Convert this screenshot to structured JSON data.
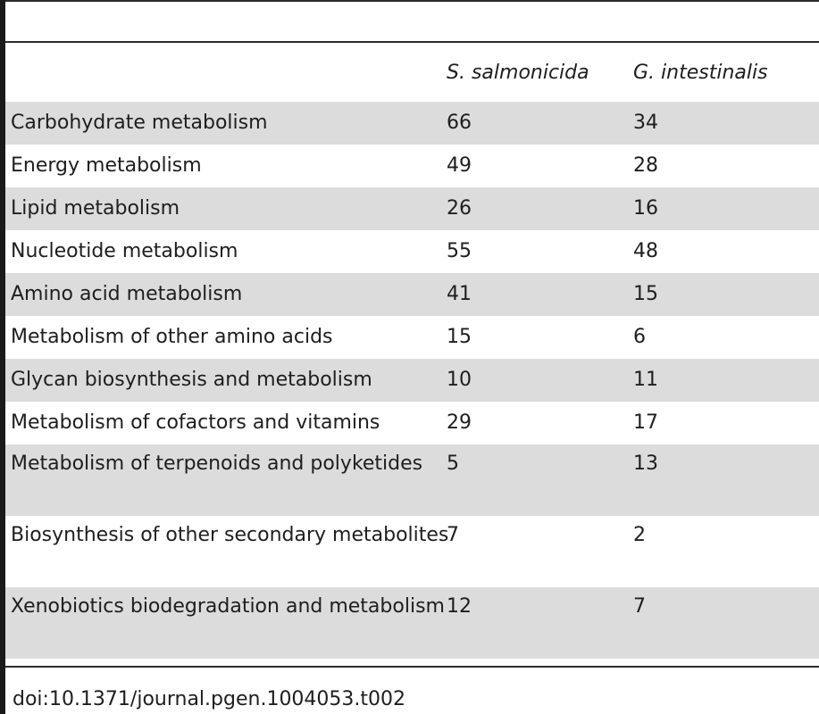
{
  "table": {
    "headers": [
      "",
      "S. salmonicida",
      "G. intestinalis"
    ],
    "rows": [
      {
        "category": "Carbohydrate metabolism",
        "s_salmonicida": "66",
        "g_intestinalis": "34"
      },
      {
        "category": "Energy metabolism",
        "s_salmonicida": "49",
        "g_intestinalis": "28"
      },
      {
        "category": "Lipid metabolism",
        "s_salmonicida": "26",
        "g_intestinalis": "16"
      },
      {
        "category": "Nucleotide metabolism",
        "s_salmonicida": "55",
        "g_intestinalis": "48"
      },
      {
        "category": "Amino acid metabolism",
        "s_salmonicida": "41",
        "g_intestinalis": "15"
      },
      {
        "category": "Metabolism of other amino acids",
        "s_salmonicida": "15",
        "g_intestinalis": "6"
      },
      {
        "category": "Glycan biosynthesis and metabolism",
        "s_salmonicida": "10",
        "g_intestinalis": "11"
      },
      {
        "category": "Metabolism of cofactors and vitamins",
        "s_salmonicida": "29",
        "g_intestinalis": "17"
      },
      {
        "category": "Metabolism of terpenoids and polyketides",
        "s_salmonicida": "5",
        "g_intestinalis": "13"
      },
      {
        "category": "Biosynthesis of other secondary metabolites",
        "s_salmonicida": "7",
        "g_intestinalis": "2"
      },
      {
        "category": "Xenobiotics biodegradation and metabolism",
        "s_salmonicida": "12",
        "g_intestinalis": "7"
      }
    ]
  },
  "footer": {
    "doi": "doi:10.1371/journal.pgen.1004053.t002"
  },
  "colors": {
    "shaded_row": "#dcdcdc",
    "rule": "#2b2b2b",
    "text": "#1e1e1e"
  }
}
